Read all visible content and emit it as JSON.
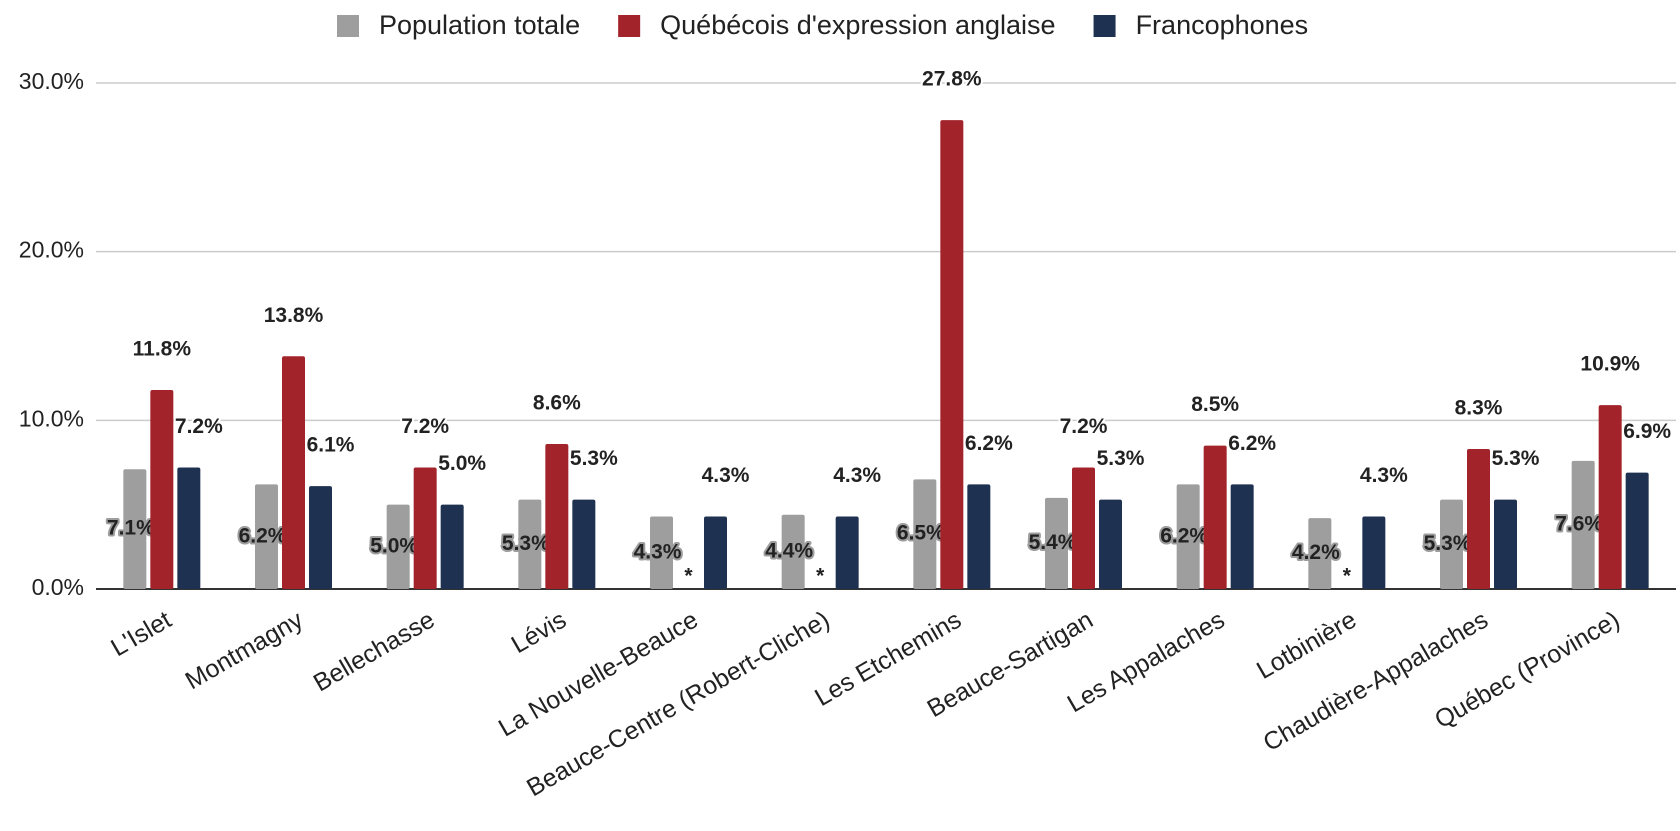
{
  "chart_data": {
    "type": "bar",
    "categories": [
      "L'Islet",
      "Montmagny",
      "Bellechasse",
      "Lévis",
      "La Nouvelle-Beauce",
      "Beauce-Centre (Robert-Cliche)",
      "Les Etchemins",
      "Beauce-Sartigan",
      "Les Appalaches",
      "Lotbinière",
      "Chaudière-Appalaches",
      "Québec (Province)"
    ],
    "series": [
      {
        "name": "Population totale",
        "color": "#9e9e9e",
        "values": [
          7.1,
          6.2,
          5.0,
          5.3,
          4.3,
          4.4,
          6.5,
          5.4,
          6.2,
          4.2,
          5.3,
          7.6
        ],
        "value_labels": [
          "7.1%",
          "6.2%",
          "5.0%",
          "5.3%",
          "4.3%",
          "4.4%",
          "6.5%",
          "5.4%",
          "6.2%",
          "4.2%",
          "5.3%",
          "7.6%"
        ]
      },
      {
        "name": "Québécois d'expression anglaise",
        "color": "#a3232b",
        "values": [
          11.8,
          13.8,
          7.2,
          8.6,
          null,
          null,
          27.8,
          7.2,
          8.5,
          null,
          8.3,
          10.9
        ],
        "value_labels": [
          "11.8%",
          "13.8%",
          "7.2%",
          "8.6%",
          "*",
          "*",
          "27.8%",
          "7.2%",
          "8.5%",
          "*",
          "8.3%",
          "10.9%"
        ]
      },
      {
        "name": "Francophones",
        "color": "#1f3150",
        "values": [
          7.2,
          6.1,
          5.0,
          5.3,
          4.3,
          4.3,
          6.2,
          5.3,
          6.2,
          4.3,
          5.3,
          6.9
        ],
        "value_labels": [
          "7.2%",
          "6.1%",
          "5.0%",
          "5.3%",
          "4.3%",
          "4.3%",
          "6.2%",
          "5.3%",
          "6.2%",
          "4.3%",
          "5.3%",
          "6.9%"
        ]
      }
    ],
    "ylim": [
      0,
      30
    ],
    "yticks": [
      {
        "value": 0,
        "label": "0.0%"
      },
      {
        "value": 10,
        "label": "10.0%"
      },
      {
        "value": 20,
        "label": "20.0%"
      },
      {
        "value": 30,
        "label": "30.0%"
      }
    ],
    "grid": true,
    "legend": "top"
  }
}
